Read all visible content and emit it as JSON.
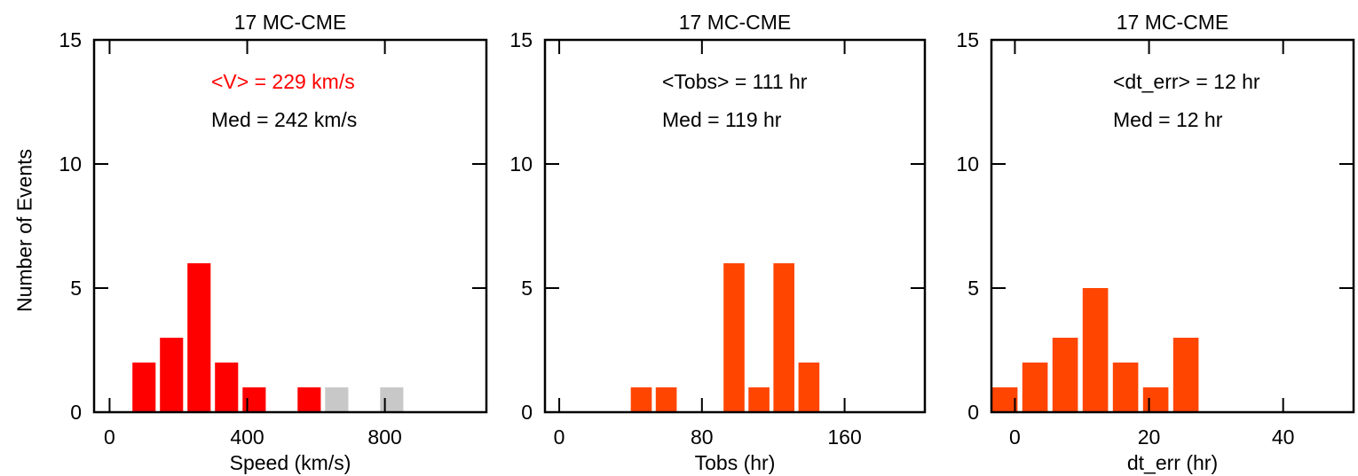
{
  "figure": {
    "ylabel": "Number of Events"
  },
  "chart_data": [
    {
      "type": "bar",
      "title": "17 MC-CME",
      "xlabel": "Speed (km/s)",
      "ylabel": "Number of Events",
      "xlim": [
        -45,
        1095
      ],
      "ylim": [
        0,
        15
      ],
      "xticks": [
        0,
        400,
        800
      ],
      "xtick_labels": [
        "0",
        "400",
        "800"
      ],
      "yticks": [
        0,
        5,
        10,
        15
      ],
      "ytick_labels": [
        "0",
        "5",
        "10",
        "15"
      ],
      "bin_width": 80,
      "bar_fill": 0.84,
      "annotations": [
        {
          "text": "<V> = 229 km/s",
          "color": "#ff0000"
        },
        {
          "text": "Med = 242 km/s",
          "color": "#000000"
        }
      ],
      "series": [
        {
          "color": "#ff0000",
          "x": [
            100,
            180,
            260,
            340,
            420,
            580
          ],
          "values": [
            2,
            3,
            6,
            2,
            1,
            1
          ]
        },
        {
          "color": "#c8c8c8",
          "x": [
            660,
            820
          ],
          "values": [
            1,
            1
          ]
        }
      ]
    },
    {
      "type": "bar",
      "title": "17 MC-CME",
      "xlabel": "Tobs (hr)",
      "ylabel": "",
      "xlim": [
        -8,
        205
      ],
      "ylim": [
        0,
        15
      ],
      "xticks": [
        0,
        80,
        160
      ],
      "xtick_labels": [
        "0",
        "80",
        "160"
      ],
      "yticks": [
        0,
        5,
        10,
        15
      ],
      "ytick_labels": [
        "0",
        "5",
        "10",
        "15"
      ],
      "bin_width": 14,
      "bar_fill": 0.84,
      "annotations": [
        {
          "text": "<Tobs> = 111 hr",
          "color": "#000000"
        },
        {
          "text": "Med = 119 hr",
          "color": "#000000"
        }
      ],
      "series": [
        {
          "color": "#ff4500",
          "x": [
            46,
            60,
            98,
            112,
            126,
            140
          ],
          "values": [
            1,
            1,
            6,
            1,
            6,
            2
          ]
        }
      ]
    },
    {
      "type": "bar",
      "title": "17 MC-CME",
      "xlabel": "dt_err (hr)",
      "ylabel": "",
      "xlim": [
        -3.5,
        50.5
      ],
      "ylim": [
        0,
        15
      ],
      "xticks": [
        0,
        20,
        40
      ],
      "xtick_labels": [
        "0",
        "20",
        "40"
      ],
      "yticks": [
        0,
        5,
        10,
        15
      ],
      "ytick_labels": [
        "0",
        "5",
        "10",
        "15"
      ],
      "bin_width": 4.5,
      "bar_fill": 0.84,
      "annotations": [
        {
          "text": "<dt_err> =  12 hr",
          "color": "#000000"
        },
        {
          "text": "Med =  12 hr",
          "color": "#000000"
        }
      ],
      "series": [
        {
          "color": "#ff4500",
          "x": [
            -1.5,
            3,
            7.5,
            12,
            16.5,
            21,
            25.5
          ],
          "values": [
            1,
            2,
            3,
            5,
            2,
            1,
            3
          ]
        }
      ]
    }
  ]
}
